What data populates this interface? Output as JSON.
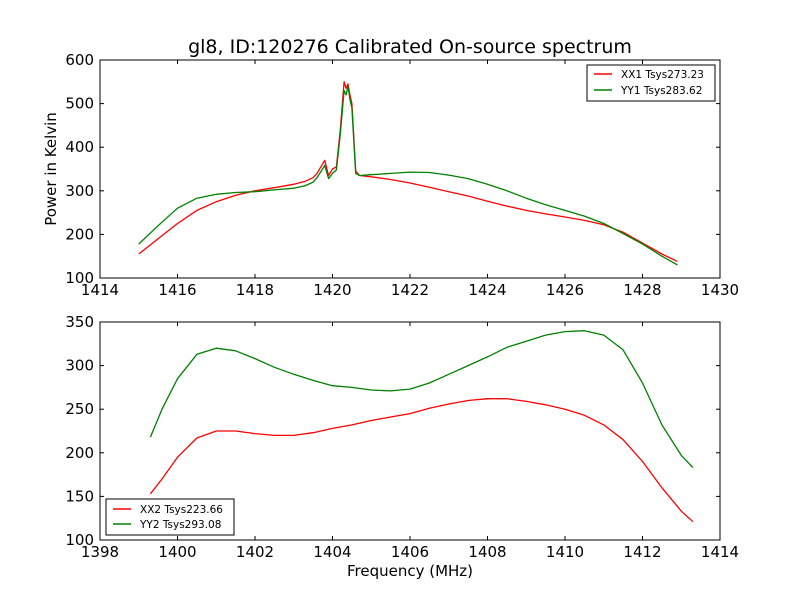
{
  "chart_data": [
    {
      "type": "line",
      "title": "gl8, ID:120276 Calibrated On-source spectrum",
      "xlabel": "",
      "ylabel": "Power in Kelvin",
      "xlim": [
        1414,
        1430
      ],
      "ylim": [
        100,
        600
      ],
      "x_ticks": [
        1414,
        1416,
        1418,
        1420,
        1422,
        1424,
        1426,
        1428,
        1430
      ],
      "y_ticks": [
        100,
        200,
        300,
        400,
        500,
        600
      ],
      "grid": false,
      "legend_position": "top-right",
      "series": [
        {
          "name": "XX1 Tsys273.23",
          "color": "#ff0000",
          "x": [
            1415.0,
            1415.5,
            1416.0,
            1416.5,
            1417.0,
            1417.5,
            1418.0,
            1418.5,
            1419.0,
            1419.3,
            1419.5,
            1419.6,
            1419.8,
            1419.9,
            1420.0,
            1420.1,
            1420.2,
            1420.3,
            1420.35,
            1420.4,
            1420.45,
            1420.5,
            1420.6,
            1420.7,
            1421.0,
            1421.5,
            1422.0,
            1422.5,
            1423.0,
            1423.5,
            1424.0,
            1424.5,
            1425.0,
            1425.5,
            1426.0,
            1426.5,
            1427.0,
            1427.5,
            1428.0,
            1428.5,
            1428.9
          ],
          "values": [
            155,
            190,
            225,
            255,
            275,
            290,
            300,
            307,
            315,
            322,
            330,
            340,
            370,
            335,
            350,
            355,
            440,
            550,
            535,
            545,
            520,
            500,
            345,
            335,
            332,
            326,
            318,
            308,
            298,
            288,
            276,
            265,
            255,
            247,
            240,
            232,
            222,
            205,
            180,
            155,
            138
          ]
        },
        {
          "name": "YY1 Tsys283.62",
          "color": "#008000",
          "x": [
            1415.0,
            1415.5,
            1416.0,
            1416.5,
            1417.0,
            1417.5,
            1418.0,
            1418.5,
            1419.0,
            1419.3,
            1419.5,
            1419.6,
            1419.8,
            1419.9,
            1420.0,
            1420.1,
            1420.2,
            1420.3,
            1420.35,
            1420.4,
            1420.45,
            1420.5,
            1420.6,
            1420.7,
            1421.0,
            1421.5,
            1422.0,
            1422.5,
            1423.0,
            1423.5,
            1424.0,
            1424.5,
            1425.0,
            1425.5,
            1426.0,
            1426.5,
            1427.0,
            1427.5,
            1428.0,
            1428.5,
            1428.9
          ],
          "values": [
            178,
            220,
            260,
            283,
            292,
            296,
            298,
            302,
            306,
            312,
            320,
            330,
            358,
            328,
            340,
            348,
            430,
            530,
            520,
            540,
            510,
            490,
            340,
            335,
            337,
            340,
            343,
            342,
            336,
            328,
            315,
            300,
            283,
            268,
            255,
            242,
            225,
            202,
            178,
            150,
            130
          ]
        }
      ]
    },
    {
      "type": "line",
      "title": "",
      "xlabel": "Frequency (MHz)",
      "ylabel": "",
      "xlim": [
        1398,
        1414
      ],
      "ylim": [
        100,
        350
      ],
      "x_ticks": [
        1398,
        1400,
        1402,
        1404,
        1406,
        1408,
        1410,
        1412,
        1414
      ],
      "y_ticks": [
        100,
        150,
        200,
        250,
        300,
        350
      ],
      "grid": false,
      "legend_position": "bottom-left",
      "series": [
        {
          "name": "XX2 Tsys223.66",
          "color": "#ff0000",
          "x": [
            1399.3,
            1399.6,
            1400.0,
            1400.5,
            1401.0,
            1401.5,
            1402.0,
            1402.5,
            1403.0,
            1403.5,
            1404.0,
            1404.5,
            1405.0,
            1405.5,
            1406.0,
            1406.5,
            1407.0,
            1407.5,
            1408.0,
            1408.5,
            1409.0,
            1409.5,
            1410.0,
            1410.5,
            1411.0,
            1411.5,
            1412.0,
            1412.5,
            1413.0,
            1413.3
          ],
          "values": [
            153,
            170,
            195,
            217,
            225,
            225,
            222,
            220,
            220,
            223,
            228,
            232,
            237,
            241,
            245,
            251,
            256,
            260,
            262,
            262,
            259,
            255,
            250,
            243,
            232,
            215,
            190,
            160,
            133,
            121
          ]
        },
        {
          "name": "YY2 Tsys293.08",
          "color": "#008000",
          "x": [
            1399.3,
            1399.6,
            1400.0,
            1400.5,
            1401.0,
            1401.5,
            1402.0,
            1402.5,
            1403.0,
            1403.5,
            1404.0,
            1404.5,
            1405.0,
            1405.5,
            1406.0,
            1406.5,
            1407.0,
            1407.5,
            1408.0,
            1408.5,
            1409.0,
            1409.5,
            1410.0,
            1410.5,
            1411.0,
            1411.5,
            1412.0,
            1412.5,
            1413.0,
            1413.3
          ],
          "values": [
            218,
            250,
            285,
            313,
            320,
            317,
            308,
            298,
            290,
            283,
            277,
            275,
            272,
            271,
            273,
            280,
            290,
            300,
            310,
            321,
            328,
            335,
            339,
            340,
            335,
            318,
            280,
            232,
            197,
            183
          ]
        }
      ]
    }
  ]
}
